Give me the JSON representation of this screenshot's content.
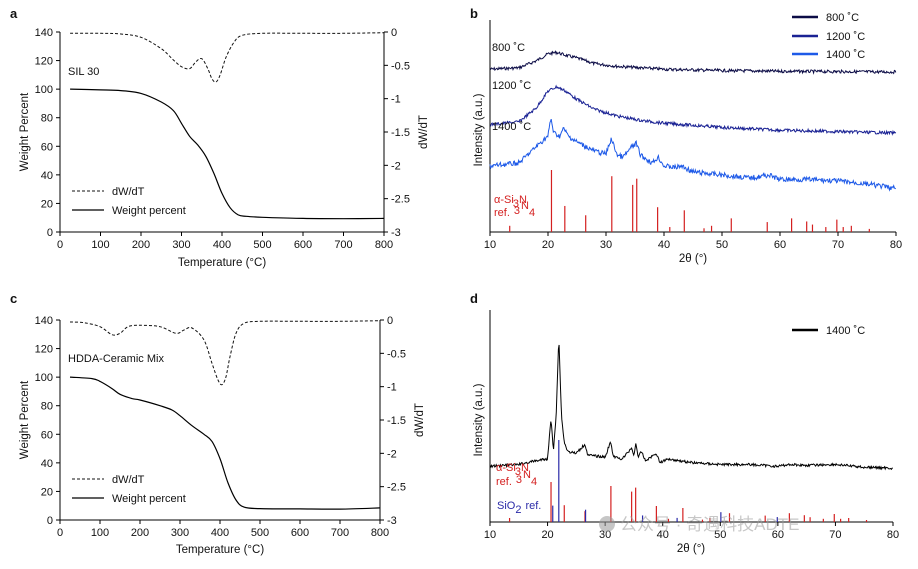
{
  "watermark": "公众号 · 奇遇科技ADTE",
  "chart_data": [
    {
      "id": "a",
      "type": "line",
      "panel_label": "a",
      "annotation": "SIL 30",
      "xlabel": "Temperature (°C)",
      "ylabel": "Weight Percent",
      "y2label": "dW/dT",
      "xlim": [
        0,
        800
      ],
      "ylim": [
        0,
        140
      ],
      "y2lim": [
        -3,
        0
      ],
      "xticks": [
        0,
        100,
        200,
        300,
        400,
        500,
        600,
        700,
        800
      ],
      "yticks": [
        0,
        20,
        40,
        60,
        80,
        100,
        120,
        140
      ],
      "y2ticks": [
        0,
        -0.5,
        -1,
        -1.5,
        -2,
        -2.5,
        -3
      ],
      "y2ticklabels": [
        "0",
        "-0.5",
        "-1",
        "-1.5",
        "-2",
        "-2.5",
        "-3"
      ],
      "legend_location": "lower-left",
      "series": [
        {
          "name": "dW/dT",
          "axis": "right",
          "style": "dashed",
          "x": [
            25,
            100,
            150,
            200,
            250,
            280,
            300,
            320,
            335,
            350,
            365,
            375,
            385,
            395,
            410,
            430,
            450,
            500,
            600,
            700,
            800
          ],
          "y": [
            -0.02,
            -0.02,
            -0.03,
            -0.08,
            -0.25,
            -0.42,
            -0.52,
            -0.55,
            -0.45,
            -0.4,
            -0.55,
            -0.7,
            -0.75,
            -0.65,
            -0.38,
            -0.15,
            -0.05,
            -0.02,
            -0.02,
            -0.02,
            -0.01
          ]
        },
        {
          "name": "Weight percent",
          "axis": "left",
          "style": "solid",
          "x": [
            25,
            100,
            150,
            200,
            250,
            280,
            300,
            320,
            340,
            360,
            380,
            400,
            420,
            440,
            460,
            500,
            600,
            700,
            800
          ],
          "y": [
            100,
            99.5,
            99,
            97,
            91,
            85,
            76,
            67,
            61,
            53,
            41,
            27,
            17,
            12,
            11,
            10.3,
            9.5,
            9.3,
            9.5
          ]
        }
      ]
    },
    {
      "id": "b",
      "type": "line",
      "panel_label": "b",
      "xlabel": "2θ (°)",
      "ylabel": "Intensity (a.u.)",
      "xlim": [
        10,
        80
      ],
      "xticks": [
        10,
        20,
        30,
        40,
        50,
        60,
        70,
        80
      ],
      "legend_location": "top-right",
      "ref_label_main": "α-Si",
      "ref_label_sub": "3",
      "ref_label_N": "N",
      "ref_label_sub2": "4",
      "ref_label_prefix": "ref.",
      "series": [
        {
          "name": "800 ˚C",
          "label": "800 ˚C",
          "color": "#0c0c46",
          "offset": 0.78,
          "x": [
            10,
            15,
            18,
            20,
            21.5,
            23,
            25,
            28,
            32,
            40,
            50,
            60,
            70,
            80
          ],
          "y": [
            0.02,
            0.03,
            0.08,
            0.13,
            0.14,
            0.12,
            0.1,
            0.06,
            0.04,
            0.02,
            0.01,
            0.005,
            0.003,
            0
          ]
        },
        {
          "name": "1200 ˚C",
          "label": "1200 ˚C",
          "color": "#1a2294",
          "offset": 0.43,
          "x": [
            10,
            15,
            18,
            20,
            21.5,
            23,
            25,
            28,
            32,
            36,
            40,
            50,
            60,
            70,
            80
          ],
          "y": [
            0.06,
            0.08,
            0.18,
            0.3,
            0.33,
            0.3,
            0.24,
            0.17,
            0.12,
            0.09,
            0.07,
            0.04,
            0.02,
            0.01,
            0
          ]
        },
        {
          "name": "1400 ˚C",
          "label": "1400 ˚C",
          "color": "#1e5ae8",
          "offset": 0.02,
          "x": [
            10,
            15,
            18,
            20,
            20.5,
            21,
            22,
            22.7,
            23.5,
            25,
            27,
            28,
            30,
            30.9,
            32,
            33,
            34.5,
            35.2,
            36,
            38,
            39,
            40,
            42,
            43,
            45,
            50,
            55,
            58,
            60,
            65,
            70,
            75,
            80
          ],
          "y": [
            0.2,
            0.22,
            0.33,
            0.4,
            0.52,
            0.42,
            0.4,
            0.45,
            0.4,
            0.36,
            0.32,
            0.3,
            0.28,
            0.38,
            0.27,
            0.26,
            0.33,
            0.35,
            0.27,
            0.22,
            0.26,
            0.2,
            0.19,
            0.2,
            0.16,
            0.14,
            0.12,
            0.14,
            0.11,
            0.11,
            0.1,
            0.08,
            0.05
          ]
        }
      ],
      "ref_peaks": {
        "x": [
          13.4,
          20.6,
          22.9,
          26.5,
          31.0,
          34.6,
          35.3,
          38.9,
          41.0,
          43.5,
          46.9,
          48.2,
          51.6,
          57.8,
          62.0,
          64.6,
          65.6,
          67.9,
          69.8,
          70.9,
          72.3,
          75.4
        ],
        "h": [
          0.1,
          1.0,
          0.42,
          0.27,
          0.9,
          0.76,
          0.86,
          0.4,
          0.08,
          0.35,
          0.06,
          0.1,
          0.22,
          0.16,
          0.22,
          0.17,
          0.12,
          0.08,
          0.2,
          0.08,
          0.1,
          0.05
        ]
      }
    },
    {
      "id": "c",
      "type": "line",
      "panel_label": "c",
      "annotation": "HDDA-Ceramic Mix",
      "xlabel": "Temperature (°C)",
      "ylabel": "Weight Percent",
      "y2label": "dW/dT",
      "xlim": [
        0,
        800
      ],
      "ylim": [
        0,
        140
      ],
      "y2lim": [
        -3,
        0
      ],
      "xticks": [
        0,
        100,
        200,
        300,
        400,
        500,
        600,
        700,
        800
      ],
      "yticks": [
        0,
        20,
        40,
        60,
        80,
        100,
        120,
        140
      ],
      "y2ticks": [
        0,
        -0.5,
        -1,
        -1.5,
        -2,
        -2.5,
        -3
      ],
      "y2ticklabels": [
        "0",
        "-0.5",
        "-1",
        "-1.5",
        "-2",
        "-2.5",
        "-3"
      ],
      "legend_location": "lower-left",
      "series": [
        {
          "name": "dW/dT",
          "axis": "right",
          "style": "dashed",
          "x": [
            25,
            60,
            100,
            130,
            150,
            170,
            200,
            250,
            290,
            310,
            330,
            360,
            380,
            395,
            405,
            415,
            425,
            440,
            460,
            500,
            600,
            700,
            800
          ],
          "y": [
            -0.03,
            -0.04,
            -0.1,
            -0.22,
            -0.2,
            -0.1,
            -0.08,
            -0.1,
            -0.2,
            -0.15,
            -0.12,
            -0.3,
            -0.65,
            -0.9,
            -0.97,
            -0.85,
            -0.55,
            -0.2,
            -0.05,
            -0.02,
            -0.02,
            -0.02,
            -0.01
          ]
        },
        {
          "name": "Weight percent",
          "axis": "left",
          "style": "solid",
          "x": [
            25,
            80,
            100,
            130,
            150,
            180,
            200,
            250,
            280,
            300,
            330,
            360,
            380,
            400,
            420,
            440,
            460,
            500,
            600,
            700,
            800
          ],
          "y": [
            100,
            99,
            97,
            92,
            88,
            85,
            84,
            80,
            77,
            73,
            66,
            60,
            55,
            43,
            26,
            14,
            9,
            8,
            7.8,
            7.6,
            8.5
          ]
        }
      ]
    },
    {
      "id": "d",
      "type": "line",
      "panel_label": "d",
      "xlabel": "2θ (°)",
      "ylabel": "Intensity (a.u.)",
      "xlim": [
        10,
        80
      ],
      "xticks": [
        10,
        20,
        30,
        40,
        50,
        60,
        70,
        80
      ],
      "legend_location": "top-right",
      "ref_label_main": "α-Si",
      "ref_label_sub": "3",
      "ref_label_N": "N",
      "ref_label_sub2": "4",
      "ref_label_prefix": "ref.",
      "sio2_label": "SiO",
      "sio2_sub": "2",
      "sio2_suffix": "ref.",
      "series": [
        {
          "name": "1400 ˚C",
          "label": "1400 ˚C",
          "color": "#000000",
          "x": [
            10,
            15,
            18,
            20,
            20.6,
            21.0,
            21.5,
            21.95,
            22.4,
            22.9,
            23.5,
            25,
            26.5,
            27,
            30,
            30.9,
            31.5,
            33,
            34.6,
            35.0,
            35.3,
            35.8,
            36.3,
            37,
            38.9,
            39.5,
            41,
            43,
            45,
            50,
            55,
            60,
            62,
            65,
            70,
            75,
            80
          ],
          "y": [
            0.02,
            0.03,
            0.05,
            0.06,
            0.28,
            0.1,
            0.3,
            0.72,
            0.3,
            0.15,
            0.1,
            0.09,
            0.14,
            0.08,
            0.07,
            0.15,
            0.07,
            0.06,
            0.12,
            0.08,
            0.14,
            0.07,
            0.1,
            0.05,
            0.09,
            0.04,
            0.06,
            0.05,
            0.04,
            0.03,
            0.03,
            0.02,
            0.03,
            0.025,
            0.03,
            0.015,
            0.01
          ]
        }
      ],
      "ref_peaks": {
        "x": [
          13.4,
          20.6,
          22.9,
          26.5,
          31.0,
          34.6,
          35.3,
          38.9,
          41.0,
          43.5,
          46.9,
          48.2,
          51.6,
          57.8,
          62.0,
          64.6,
          65.6,
          67.9,
          69.8,
          70.9,
          72.3,
          75.4
        ],
        "h": [
          0.1,
          1.0,
          0.42,
          0.27,
          0.9,
          0.76,
          0.86,
          0.4,
          0.08,
          0.35,
          0.06,
          0.1,
          0.22,
          0.16,
          0.22,
          0.17,
          0.12,
          0.08,
          0.2,
          0.08,
          0.1,
          0.05
        ]
      },
      "sio2_peaks": {
        "x": [
          20.9,
          21.95,
          26.6,
          36.5,
          42.5,
          50.1,
          59.9
        ],
        "h": [
          0.2,
          1.0,
          0.15,
          0.08,
          0.05,
          0.12,
          0.06
        ]
      }
    }
  ]
}
